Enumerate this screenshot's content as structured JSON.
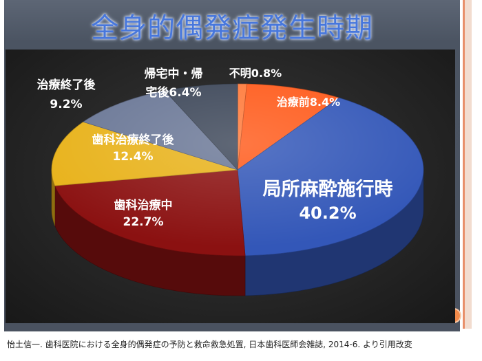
{
  "title": "全身的偶発症発生時期",
  "caption": "怡土信一. 歯科医院における全身的偶発症の予防と救命救急処置, 日本歯科医師会雑誌, 2014-6. より引用改変",
  "chart_data": {
    "type": "pie",
    "title": "全身的偶発症発生時期",
    "slices": [
      {
        "name": "不明",
        "value": 0.8,
        "label_lines": [
          "不明0.8%"
        ],
        "color": "#ff7a3a"
      },
      {
        "name": "治療前",
        "value": 8.4,
        "label_lines": [
          "治療前8.4%"
        ],
        "color": "#ff5a1a"
      },
      {
        "name": "局所麻酔施行時",
        "value": 40.2,
        "label_lines": [
          "局所麻酔施行時",
          "40.2%"
        ],
        "color": "#3357b8"
      },
      {
        "name": "歯科治療中",
        "value": 22.7,
        "label_lines": [
          "歯科治療中",
          "22.7%"
        ],
        "color": "#8b1111"
      },
      {
        "name": "歯科治療終了後",
        "value": 12.4,
        "label_lines": [
          "歯科治療終了後",
          "12.4%"
        ],
        "color": "#e8b21a"
      },
      {
        "name": "治療終了後",
        "value": 9.2,
        "label_lines": [
          "治療終了後",
          "9.2%"
        ],
        "color": "#6a7796"
      },
      {
        "name": "帰宅中・帰宅後",
        "value": 6.4,
        "label_lines": [
          "帰宅中・帰",
          "宅後6.4%"
        ],
        "color": "#3c4658"
      }
    ],
    "unit": "%"
  }
}
